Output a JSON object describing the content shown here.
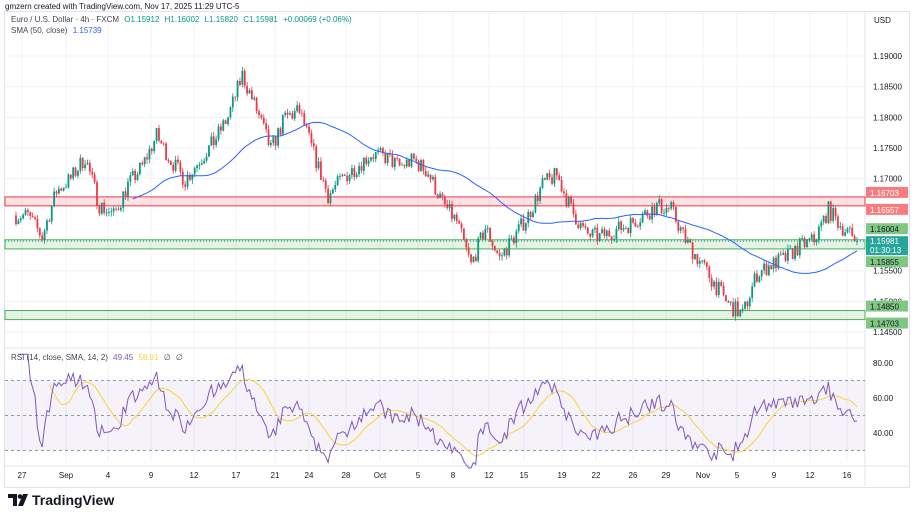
{
  "credit": "gmzern created with TradingView.com, Nov 17, 2025 11:29 UTC-5",
  "symbol": {
    "title": "Euro / U.S. Dollar · 4h · FXCM",
    "open": "O1.15912",
    "high": "H1.16002",
    "low": "L1.15820",
    "close": "C1.15981",
    "change": "+0.00069 (+0.06%)"
  },
  "sma": {
    "label": "SMA (50, close)",
    "value": "1.15739",
    "color": "#2962ff"
  },
  "rsi": {
    "label": "RSI (14, close, SMA, 14, 2)",
    "value": "49.45",
    "sma_value": "58.91",
    "extra1": "∅",
    "extra2": "∅",
    "color": "#7e57c2",
    "sma_color": "#f7d43d"
  },
  "currency": "USD",
  "colors": {
    "up": "#089981",
    "down": "#f23645",
    "resistance": "#f23645",
    "support": "#4caf50"
  },
  "chart_data": {
    "type": "candlestick",
    "timeframe": "4h",
    "ylim": [
      1.1429,
      1.1975
    ],
    "y_ticks": [
      "1.19000",
      "1.18500",
      "1.18000",
      "1.17500",
      "1.17000",
      "1.15500",
      "1.15000",
      "1.14500"
    ],
    "x_ticks": [
      "27",
      "Sep",
      "4",
      "9",
      "12",
      "17",
      "21",
      "24",
      "28",
      "Oct",
      "5",
      "8",
      "12",
      "15",
      "19",
      "22",
      "26",
      "29",
      "Nov",
      "5",
      "9",
      "12",
      "16"
    ],
    "daily_closes": [
      [
        "2025-08-27",
        1.164
      ],
      [
        "2025-08-28",
        1.1605
      ],
      [
        "2025-08-29",
        1.168
      ],
      [
        "2025-09-01",
        1.17
      ],
      [
        "2025-09-02",
        1.1735
      ],
      [
        "2025-09-03",
        1.1657
      ],
      [
        "2025-09-04",
        1.164
      ],
      [
        "2025-09-05",
        1.169
      ],
      [
        "2025-09-08",
        1.172
      ],
      [
        "2025-09-09",
        1.177
      ],
      [
        "2025-09-10",
        1.173
      ],
      [
        "2025-09-11",
        1.1698
      ],
      [
        "2025-09-12",
        1.173
      ],
      [
        "2025-09-15",
        1.176
      ],
      [
        "2025-09-16",
        1.18
      ],
      [
        "2025-09-17",
        1.1869
      ],
      [
        "2025-09-18",
        1.1812
      ],
      [
        "2025-09-19",
        1.1747
      ],
      [
        "2025-09-22",
        1.18
      ],
      [
        "2025-09-23",
        1.181
      ],
      [
        "2025-09-24",
        1.174
      ],
      [
        "2025-09-25",
        1.1673
      ],
      [
        "2025-09-26",
        1.17
      ],
      [
        "2025-09-29",
        1.172
      ],
      [
        "2025-09-30",
        1.174
      ],
      [
        "2025-10-01",
        1.1735
      ],
      [
        "2025-10-02",
        1.172
      ],
      [
        "2025-10-03",
        1.173
      ],
      [
        "2025-10-06",
        1.171
      ],
      [
        "2025-10-07",
        1.166
      ],
      [
        "2025-10-08",
        1.163
      ],
      [
        "2025-10-09",
        1.1559
      ],
      [
        "2025-10-10",
        1.162
      ],
      [
        "2025-10-13",
        1.157
      ],
      [
        "2025-10-14",
        1.1605
      ],
      [
        "2025-10-15",
        1.164
      ],
      [
        "2025-10-16",
        1.169
      ],
      [
        "2025-10-17",
        1.1706
      ],
      [
        "2025-10-20",
        1.165
      ],
      [
        "2025-10-21",
        1.161
      ],
      [
        "2025-10-22",
        1.1605
      ],
      [
        "2025-10-23",
        1.1615
      ],
      [
        "2025-10-24",
        1.1625
      ],
      [
        "2025-10-27",
        1.164
      ],
      [
        "2025-10-28",
        1.1655
      ],
      [
        "2025-10-29",
        1.165
      ],
      [
        "2025-10-30",
        1.16
      ],
      [
        "2025-10-31",
        1.1565
      ],
      [
        "2025-11-03",
        1.153
      ],
      [
        "2025-11-04",
        1.1495
      ],
      [
        "2025-11-05",
        1.1478
      ],
      [
        "2025-11-06",
        1.1545
      ],
      [
        "2025-11-07",
        1.156
      ],
      [
        "2025-11-10",
        1.157
      ],
      [
        "2025-11-11",
        1.159
      ],
      [
        "2025-11-12",
        1.16
      ],
      [
        "2025-11-13",
        1.1649
      ],
      [
        "2025-11-14",
        1.162
      ],
      [
        "2025-11-17",
        1.15981
      ]
    ],
    "zones": [
      {
        "type": "resistance",
        "from": 1.16557,
        "to": 1.16703,
        "labels": [
          "1.16703",
          "1.16557"
        ]
      },
      {
        "type": "support",
        "from": 1.15855,
        "to": 1.16004,
        "labels": [
          "1.16004",
          "1.15855"
        ]
      },
      {
        "type": "support",
        "from": 1.14703,
        "to": 1.1485,
        "labels": [
          "1.14850",
          "1.14703"
        ]
      }
    ],
    "last_price": "1.15981",
    "countdown": "01:30:13",
    "rsi_pane": {
      "ylim": [
        25,
        85
      ],
      "y_ticks": [
        "80.00",
        "60.00",
        "40.00"
      ],
      "bands": [
        30,
        70
      ]
    }
  },
  "brand": "TradingView"
}
